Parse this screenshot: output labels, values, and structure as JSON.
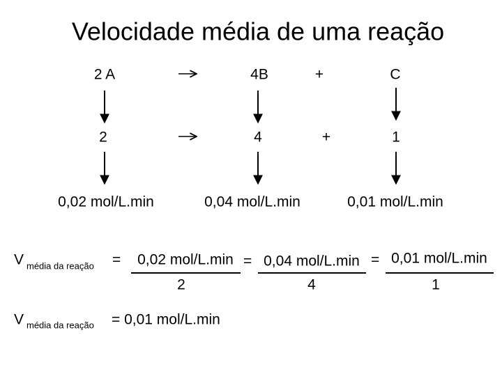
{
  "title": "Velocidade média de uma reação",
  "reaction": [
    "2 A",
    "4B",
    "+",
    "C"
  ],
  "coefficients": [
    "2",
    "4",
    "+",
    "1"
  ],
  "rates": [
    "0,02 mol/L.min",
    "0,04 mol/L.min",
    "0,01 mol/L.min"
  ],
  "formula1": {
    "symbol": "V",
    "subscript": "média da reação",
    "equals": "=",
    "terms": [
      {
        "numerator": "0,02 mol/L.min",
        "denominator": "2"
      },
      {
        "numerator": "0,04 mol/L.min",
        "denominator": "4"
      },
      {
        "numerator": "0,01 mol/L.min",
        "denominator": "1"
      }
    ]
  },
  "formula2": {
    "symbol": "V",
    "subscript": "média da reação",
    "result": "= 0,01 mol/L.min"
  }
}
